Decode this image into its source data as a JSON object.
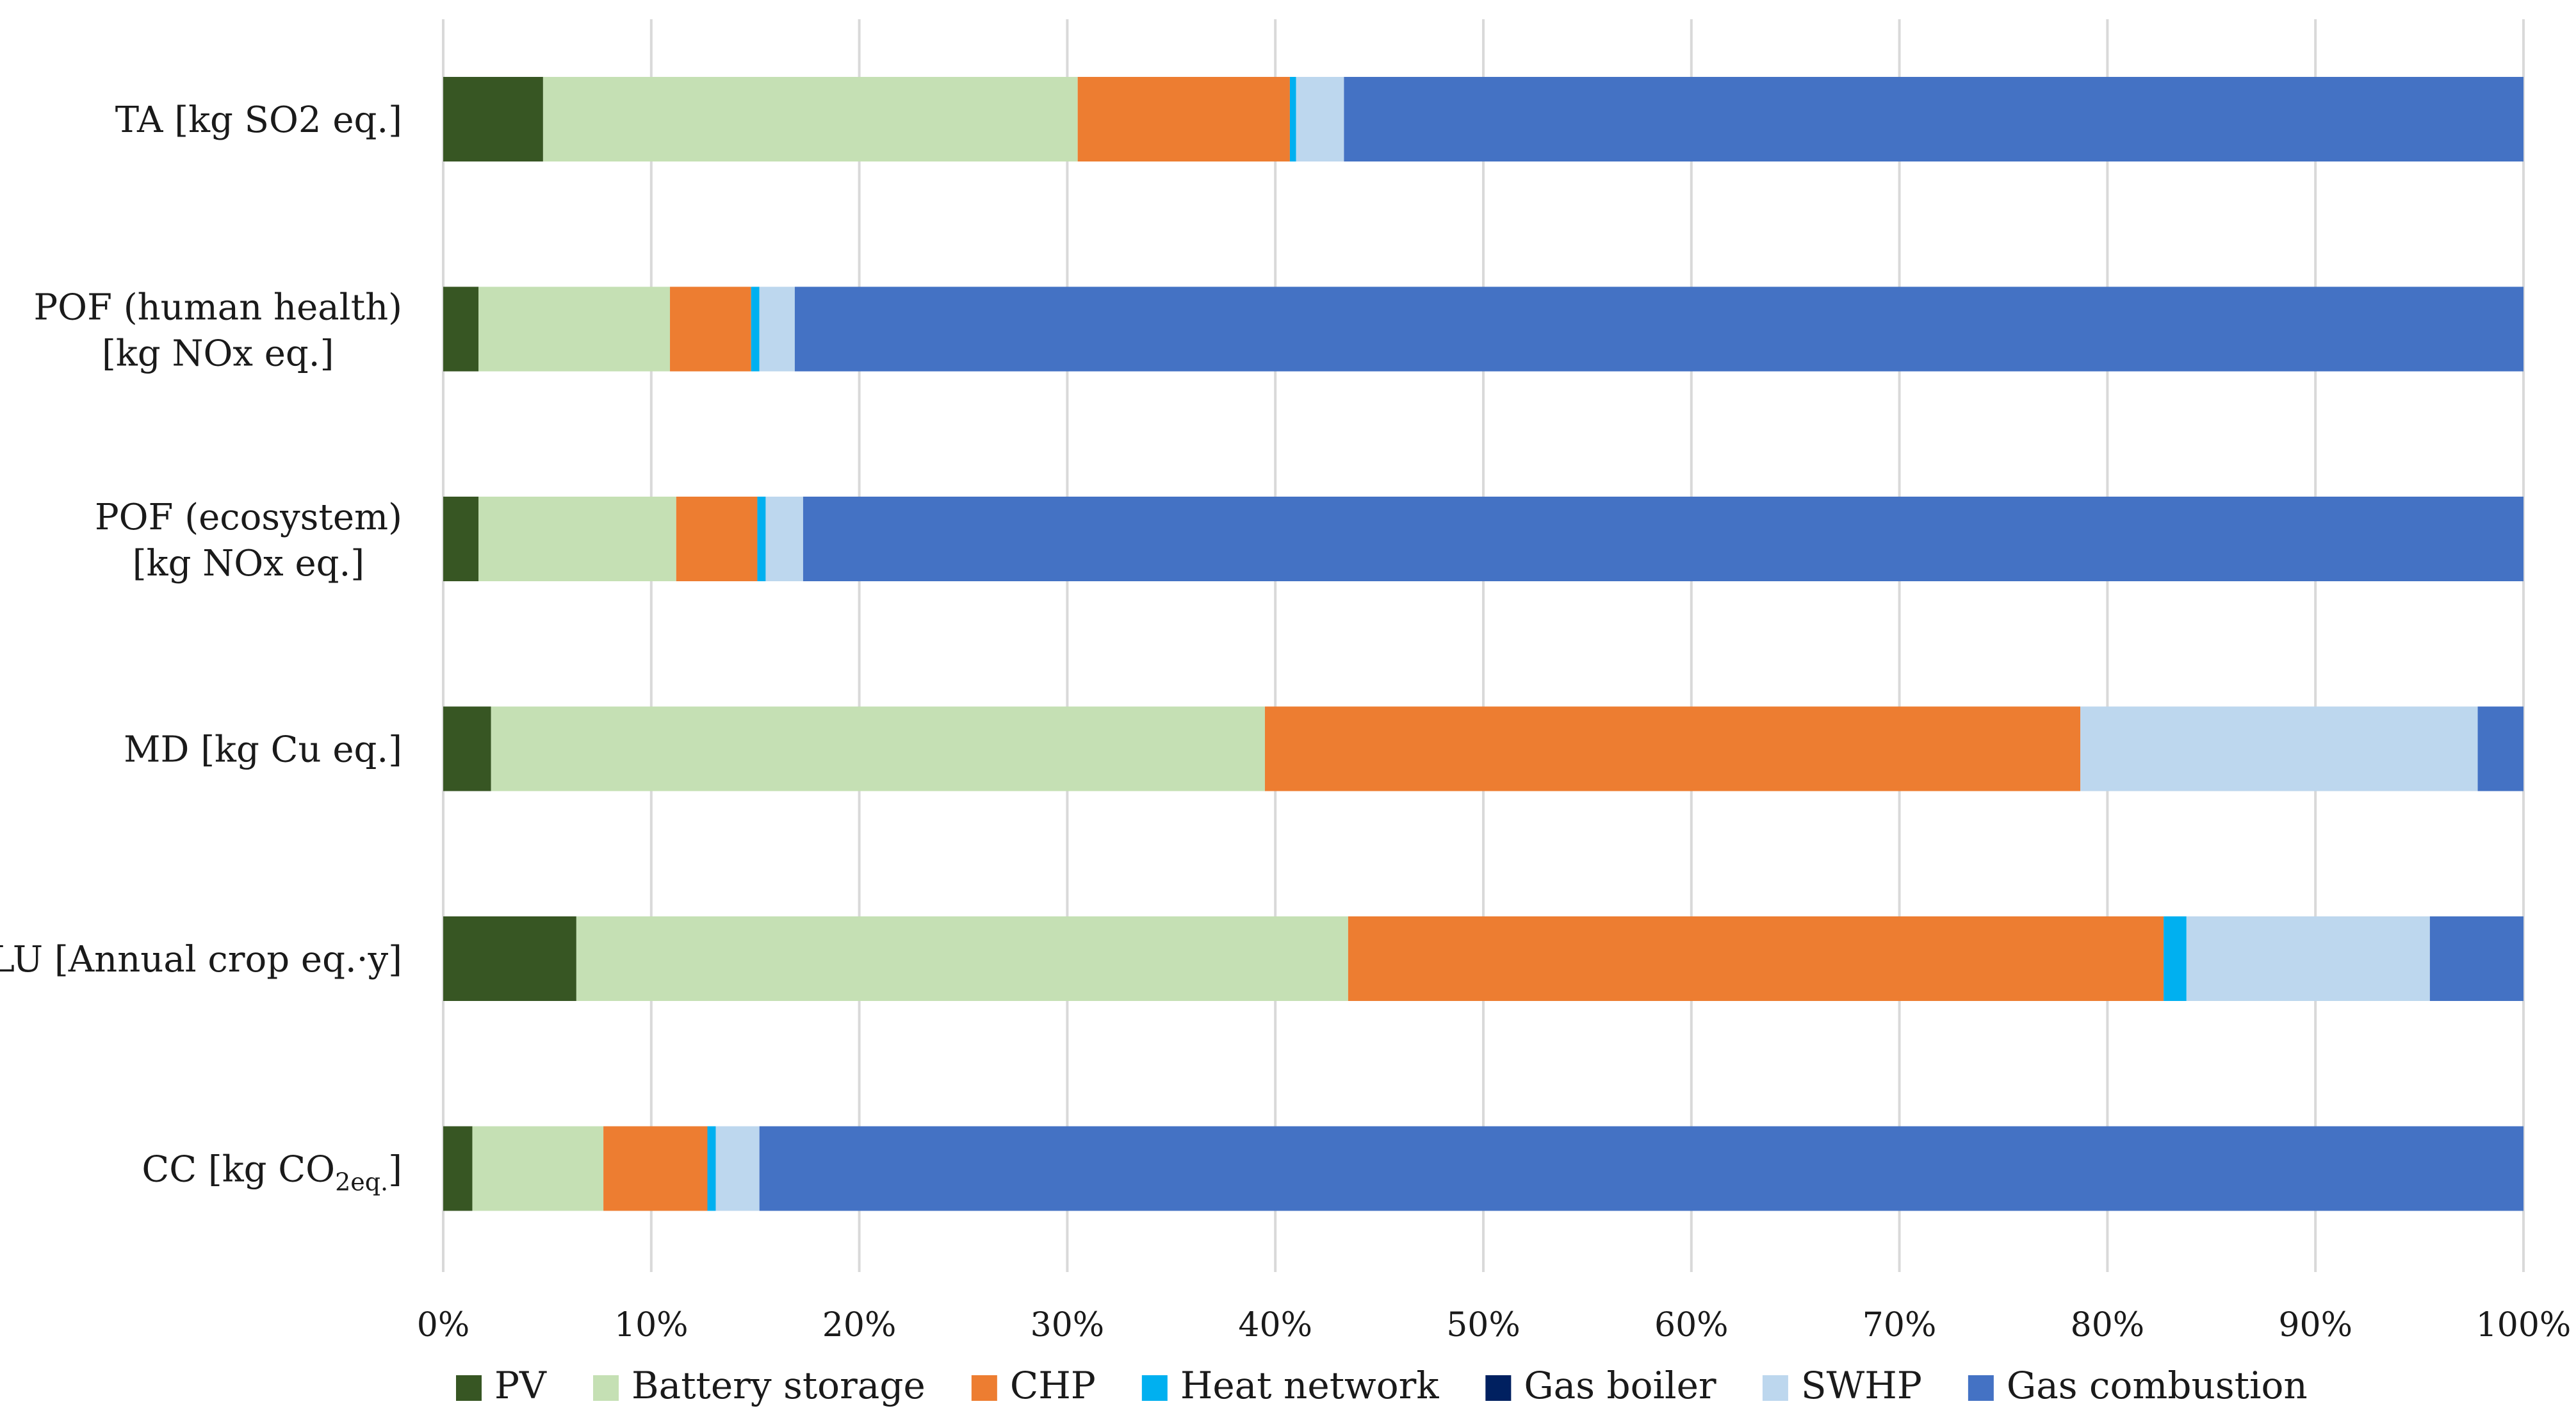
{
  "chart_data": {
    "type": "bar",
    "orientation": "horizontal",
    "stacked": "percent",
    "title": "",
    "xlabel": "",
    "ylabel": "",
    "xlim": [
      0,
      100
    ],
    "grid": true,
    "legend_position": "bottom",
    "x_ticks": [
      "0%",
      "10%",
      "20%",
      "30%",
      "40%",
      "50%",
      "60%",
      "70%",
      "80%",
      "90%",
      "100%"
    ],
    "categories": [
      {
        "label": "TA [kg SO2 eq.]",
        "lines": [
          "TA [kg SO2 eq.]"
        ]
      },
      {
        "label": "POF (human health) [kg NOx eq.]",
        "lines": [
          "POF (human health)",
          "[kg NOx eq.]"
        ]
      },
      {
        "label": "POF (ecosystem) [kg NOx eq.]",
        "lines": [
          "POF (ecosystem)",
          "[kg NOx eq.]"
        ]
      },
      {
        "label": "MD [kg Cu eq.]",
        "lines": [
          "MD [kg Cu eq.]"
        ]
      },
      {
        "label": "LU [Annual crop eq.·y]",
        "lines": [
          "LU [Annual crop eq.·y]"
        ]
      },
      {
        "label": "CC [kg CO2eq.]",
        "prefix": "CC [kg CO",
        "subscript": "2eq.",
        "suffix": "]"
      }
    ],
    "series": [
      {
        "name": "PV",
        "color": "#375623",
        "values": [
          4.8,
          1.7,
          1.7,
          2.3,
          6.4,
          1.4
        ]
      },
      {
        "name": "Battery storage",
        "color": "#c5e0b4",
        "values": [
          25.7,
          9.2,
          9.5,
          37.2,
          37.1,
          6.3
        ]
      },
      {
        "name": "CHP",
        "color": "#ed7d31",
        "values": [
          10.2,
          3.9,
          3.9,
          39.2,
          39.2,
          5.0
        ]
      },
      {
        "name": "Heat network",
        "color": "#00b0f0",
        "values": [
          0.3,
          0.4,
          0.4,
          0.0,
          1.1,
          0.4
        ]
      },
      {
        "name": "Gas boiler",
        "color": "#002060",
        "values": [
          0.0,
          0.0,
          0.0,
          0.0,
          0.0,
          0.0
        ]
      },
      {
        "name": "SWHP",
        "color": "#bdd7ee",
        "values": [
          2.3,
          1.7,
          1.8,
          19.1,
          11.7,
          2.1
        ]
      },
      {
        "name": "Gas combustion",
        "color": "#4472c4",
        "values": [
          56.7,
          83.1,
          82.7,
          2.2,
          4.5,
          84.8
        ]
      }
    ]
  }
}
